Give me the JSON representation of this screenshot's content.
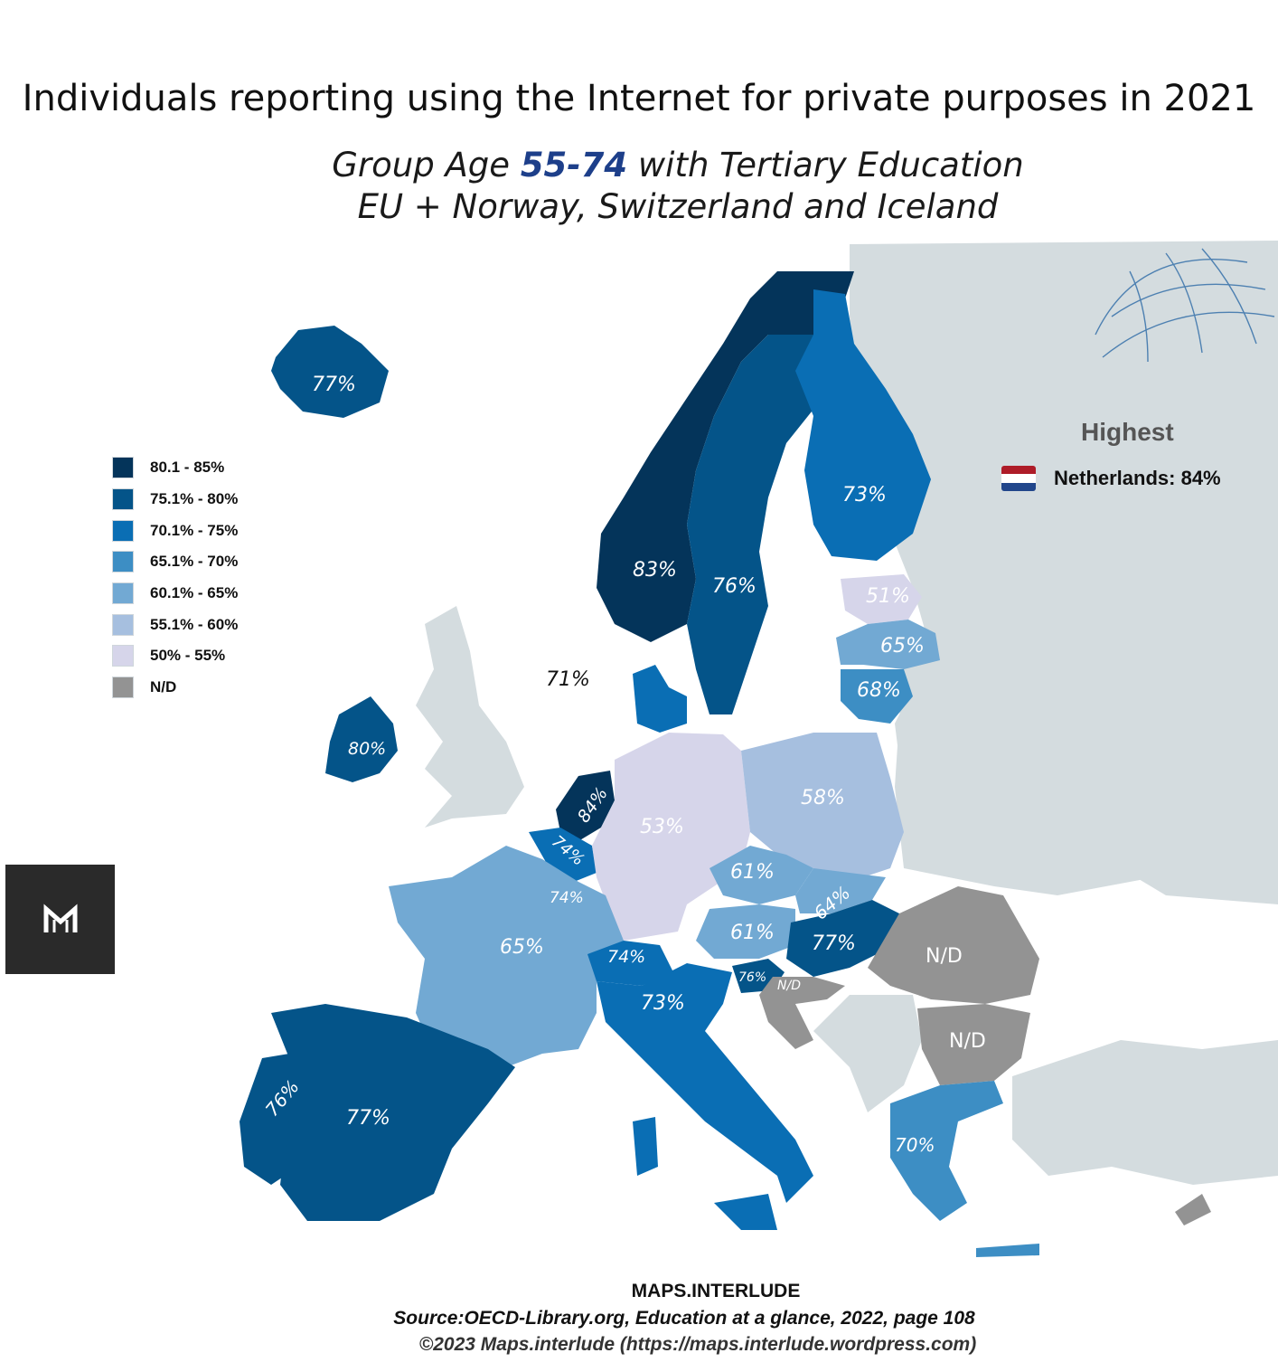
{
  "title": "Individuals reporting using the Internet for private purposes in 2021",
  "subtitle": {
    "line1_pre": "Group Age ",
    "line1_accent": "55-74",
    "line1_post": " with Tertiary Education",
    "line2": "EU + Norway, Switzerland and Iceland"
  },
  "colors": {
    "c1": "#04345a",
    "c2": "#045489",
    "c3": "#0a6eb4",
    "c4": "#3d8ec4",
    "c5": "#72a9d3",
    "c6": "#a6bfdf",
    "c7": "#d6d5ea",
    "nd": "#939393",
    "other_land": "#d4dcdf",
    "sea": "#ffffff"
  },
  "legend": [
    {
      "label": "80.1 - 85%",
      "color": "#04345a"
    },
    {
      "label": "75.1% - 80%",
      "color": "#045489"
    },
    {
      "label": "70.1% - 75%",
      "color": "#0a6eb4"
    },
    {
      "label": "65.1% - 70%",
      "color": "#3d8ec4"
    },
    {
      "label": "60.1% - 65%",
      "color": "#72a9d3"
    },
    {
      "label": "55.1% - 60%",
      "color": "#a6bfdf"
    },
    {
      "label": "50% - 55%",
      "color": "#d6d5ea"
    },
    {
      "label": "N/D",
      "color": "#939393"
    }
  ],
  "highest": {
    "title": "Highest",
    "text": "Netherlands: 84%"
  },
  "map_labels": {
    "iceland": "77%",
    "norway": "83%",
    "sweden": "76%",
    "finland": "73%",
    "estonia": "51%",
    "latvia": "65%",
    "lithuania": "68%",
    "denmark": "71%",
    "ireland": "80%",
    "netherlands": "84%",
    "belgium": "74%",
    "luxembourg": "74%",
    "germany": "53%",
    "poland": "58%",
    "czechia": "61%",
    "slovakia": "64%",
    "austria": "61%",
    "hungary": "77%",
    "slovenia": "76%",
    "croatia": "N/D",
    "romania": "N/D",
    "bulgaria": "N/D",
    "france": "65%",
    "switzerland": "74%",
    "italy": "73%",
    "spain": "77%",
    "portugal": "76%",
    "greece": "70%"
  },
  "footer": {
    "brand": "MAPS.INTERLUDE",
    "source": "Source:OECD-Library.org, Education at a glance, 2022, page 108",
    "copyright": "©2023 Maps.interlude (https://maps.interlude.wordpress.com)"
  }
}
